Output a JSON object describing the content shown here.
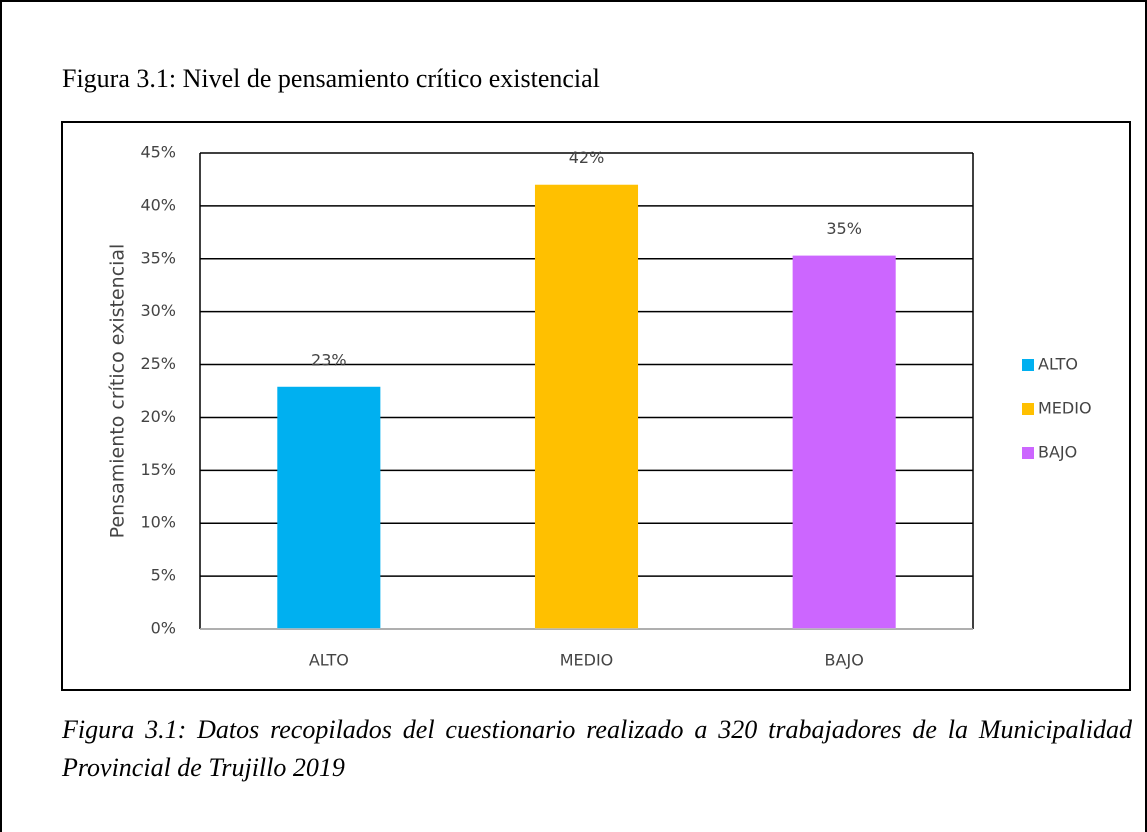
{
  "title": "Figura 3.1: Nivel de pensamiento crítico existencial",
  "caption": "Figura 3.1: Datos recopilados del cuestionario realizado a 320 trabajadores de la Municipalidad Provincial de Trujillo 2019",
  "chart_data": {
    "type": "bar",
    "y_label": "Pensamiento crítico existencial",
    "categories": [
      "ALTO",
      "MEDIO",
      "BAJO"
    ],
    "values": [
      22.9,
      42,
      35.3
    ],
    "value_labels": [
      "23%",
      "42%",
      "35%"
    ],
    "colors": [
      "#00b0f0",
      "#ffc000",
      "#cc66ff"
    ],
    "ylim": [
      0,
      45
    ],
    "yticks": [
      {
        "value": 0,
        "label": "0%"
      },
      {
        "value": 5,
        "label": "5%"
      },
      {
        "value": 10,
        "label": "10%"
      },
      {
        "value": 15,
        "label": "15%"
      },
      {
        "value": 20,
        "label": "20%"
      },
      {
        "value": 25,
        "label": "25%"
      },
      {
        "value": 30,
        "label": "30%"
      },
      {
        "value": 35,
        "label": "35%"
      },
      {
        "value": 40,
        "label": "40%"
      },
      {
        "value": 45,
        "label": "45%"
      }
    ],
    "grid": true,
    "legend": "right"
  }
}
